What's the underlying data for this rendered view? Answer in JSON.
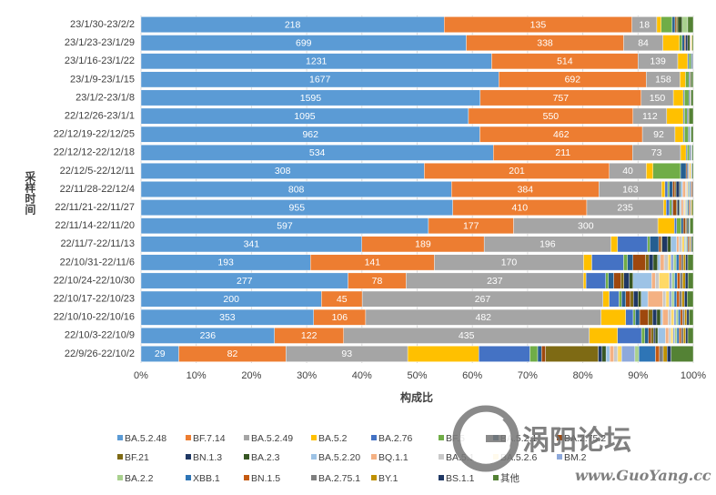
{
  "chart_data": {
    "type": "bar",
    "orientation": "horizontal",
    "stacked": true,
    "percent_stacked": true,
    "categories": [
      "23/1/30-23/2/2",
      "23/1/23-23/1/29",
      "23/1/16-23/1/22",
      "23/1/9-23/1/15",
      "23/1/2-23/1/8",
      "22/12/26-23/1/1",
      "22/12/19-22/12/25",
      "22/12/12-22/12/18",
      "22/12/5-22/12/11",
      "22/11/28-22/12/4",
      "22/11/21-22/11/27",
      "22/11/14-22/11/20",
      "22/11/7-22/11/13",
      "22/10/31-22/11/6",
      "22/10/24-22/10/30",
      "22/10/17-22/10/23",
      "22/10/10-22/10/16",
      "22/10/3-22/10/9",
      "22/9/26-22/10/2"
    ],
    "ylabel": "采样时间",
    "xlabel": "构成比",
    "xticks": [
      "0%",
      "10%",
      "20%",
      "30%",
      "40%",
      "50%",
      "60%",
      "70%",
      "80%",
      "90%",
      "100%"
    ],
    "xlim": [
      0,
      1
    ],
    "legend_position": "bottom",
    "series": [
      {
        "name": "BA.5.2.48",
        "color": "#5b9bd5",
        "shares": [
          0.549,
          0.589,
          0.635,
          0.648,
          0.613,
          0.593,
          0.613,
          0.638,
          0.513,
          0.56,
          0.565,
          0.52,
          0.397,
          0.309,
          0.388,
          0.35,
          0.322,
          0.245,
          0.068
        ],
        "labels": [
          "218",
          "699",
          "1231",
          "1677",
          "1595",
          "1095",
          "962",
          "534",
          "308",
          "808",
          "955",
          "597",
          "341",
          "193",
          "277",
          "200",
          "353",
          "236",
          "29"
        ]
      },
      {
        "name": "BF.7.14",
        "color": "#ed7d31",
        "shares": [
          0.34,
          0.285,
          0.265,
          0.267,
          0.291,
          0.298,
          0.294,
          0.252,
          0.335,
          0.266,
          0.243,
          0.154,
          0.22,
          0.226,
          0.109,
          0.079,
          0.097,
          0.127,
          0.193
        ],
        "labels": [
          "135",
          "338",
          "514",
          "692",
          "757",
          "550",
          "462",
          "211",
          "201",
          "384",
          "410",
          "177",
          "189",
          "141",
          "78",
          "45",
          "106",
          "122",
          "82"
        ]
      },
      {
        "name": "BA.5.2.49",
        "color": "#a5a5a5",
        "shares": [
          0.045,
          0.071,
          0.072,
          0.061,
          0.058,
          0.061,
          0.059,
          0.087,
          0.067,
          0.113,
          0.139,
          0.261,
          0.228,
          0.272,
          0.332,
          0.467,
          0.439,
          0.451,
          0.219
        ],
        "labels": [
          "18",
          "84",
          "139",
          "158",
          "150",
          "112",
          "92",
          "73",
          "40",
          "163",
          "235",
          "300",
          "196",
          "170",
          "237",
          "267",
          "482",
          "435",
          "93"
        ]
      },
      {
        "name": "BA.5.2",
        "color": "#ffc000",
        "shares": [
          0.008,
          0.03,
          0.018,
          0.01,
          0.018,
          0.03,
          0.015,
          0.01,
          0.012,
          0.006,
          0.005,
          0.03,
          0.012,
          0.015,
          0.005,
          0.012,
          0.046,
          0.052,
          0.128
        ]
      },
      {
        "name": "BA.2.76",
        "color": "#4472c4",
        "shares": [
          0.0,
          0.0,
          0.002,
          0.0,
          0.002,
          0.002,
          0.002,
          0.002,
          0.0,
          0.005,
          0.006,
          0.004,
          0.054,
          0.058,
          0.037,
          0.019,
          0.014,
          0.044,
          0.092
        ]
      },
      {
        "name": "BF.5",
        "color": "#70ad47",
        "shares": [
          0.02,
          0.005,
          0.004,
          0.006,
          0.008,
          0.005,
          0.007,
          0.004,
          0.05,
          0.003,
          0.004,
          0.008,
          0.004,
          0.007,
          0.005,
          0.005,
          0.004,
          0.006,
          0.014
        ]
      },
      {
        "name": "BA.5.2.1",
        "color": "#255e91",
        "shares": [
          0.005,
          0.004,
          0.002,
          0.002,
          0.002,
          0.002,
          0.002,
          0.002,
          0.01,
          0.006,
          0.002,
          0.004,
          0.016,
          0.01,
          0.01,
          0.008,
          0.008,
          0.007,
          0.007
        ]
      },
      {
        "name": "BA.2.75.2",
        "color": "#9e480e",
        "shares": [
          0.002,
          0.002,
          0.001,
          0.001,
          0.001,
          0.001,
          0.001,
          0.001,
          0.002,
          0.004,
          0.006,
          0.004,
          0.004,
          0.023,
          0.013,
          0.009,
          0.016,
          0.005,
          0.007
        ]
      },
      {
        "name": "BF.21",
        "color": "#7e6a14",
        "shares": [
          0.003,
          0.0,
          0.0,
          0.0,
          0.0,
          0.0,
          0.0,
          0.0,
          0.0,
          0.002,
          0.002,
          0.002,
          0.002,
          0.006,
          0.006,
          0.006,
          0.008,
          0.004,
          0.095
        ]
      },
      {
        "name": "BN.1.3",
        "color": "#1f3864",
        "shares": [
          0.0,
          0.004,
          0.001,
          0.0,
          0.001,
          0.0,
          0.0,
          0.0,
          0.002,
          0.006,
          0.003,
          0.002,
          0.01,
          0.008,
          0.01,
          0.009,
          0.008,
          0.003,
          0.007
        ]
      },
      {
        "name": "BA.2.3",
        "color": "#375623",
        "shares": [
          0.008,
          0.004,
          0.0,
          0.002,
          0.0,
          0.0,
          0.0,
          0.0,
          0.0,
          0.002,
          0.002,
          0.002,
          0.006,
          0.008,
          0.007,
          0.006,
          0.007,
          0.005,
          0.007
        ]
      },
      {
        "name": "BA.5.2.20",
        "color": "#9dc3e6",
        "shares": [
          0.0,
          0.0,
          0.0,
          0.0,
          0.0,
          0.0,
          0.002,
          0.002,
          0.0,
          0.004,
          0.002,
          0.002,
          0.01,
          0.005,
          0.035,
          0.013,
          0.004,
          0.014,
          0.007
        ]
      },
      {
        "name": "BQ.1.1",
        "color": "#f4b183",
        "shares": [
          0.0,
          0.0,
          0.0,
          0.0,
          0.0,
          0.0,
          0.0,
          0.0,
          0.0,
          0.005,
          0.004,
          0.0,
          0.004,
          0.007,
          0.007,
          0.029,
          0.01,
          0.006,
          0.007
        ]
      },
      {
        "name": "BA.5.1",
        "color": "#c9c9c9",
        "shares": [
          0.0,
          0.002,
          0.0,
          0.0,
          0.0,
          0.0,
          0.0,
          0.0,
          0.002,
          0.002,
          0.002,
          0.0,
          0.006,
          0.007,
          0.007,
          0.006,
          0.006,
          0.004,
          0.007
        ]
      },
      {
        "name": "BA.5.2.6",
        "color": "#ffd966",
        "shares": [
          0.0,
          0.002,
          0.0,
          0.0,
          0.0,
          0.0,
          0.0,
          0.0,
          0.003,
          0.002,
          0.002,
          0.0,
          0.004,
          0.005,
          0.019,
          0.006,
          0.005,
          0.004,
          0.007
        ]
      },
      {
        "name": "BM.2",
        "color": "#8ea9db",
        "shares": [
          0.0,
          0.0,
          0.0,
          0.0,
          0.0,
          0.0,
          0.0,
          0.0,
          0.002,
          0.002,
          0.002,
          0.0,
          0.002,
          0.005,
          0.005,
          0.005,
          0.004,
          0.003,
          0.024
        ]
      },
      {
        "name": "BA.2.2",
        "color": "#a9d18e",
        "shares": [
          0.01,
          0.0,
          0.0,
          0.0,
          0.0,
          0.0,
          0.0,
          0.0,
          0.0,
          0.002,
          0.002,
          0.0,
          0.002,
          0.005,
          0.005,
          0.005,
          0.004,
          0.004,
          0.007
        ]
      },
      {
        "name": "XBB.1",
        "color": "#2e75b6",
        "shares": [
          0.0,
          0.0,
          0.0,
          0.0,
          0.0,
          0.0,
          0.0,
          0.0,
          0.0,
          0.002,
          0.002,
          0.0,
          0.002,
          0.005,
          0.005,
          0.005,
          0.004,
          0.004,
          0.03
        ]
      },
      {
        "name": "BN.1.5",
        "color": "#c55a11",
        "shares": [
          0.0,
          0.0,
          0.0,
          0.0,
          0.0,
          0.0,
          0.0,
          0.0,
          0.0,
          0.002,
          0.002,
          0.0,
          0.002,
          0.004,
          0.005,
          0.005,
          0.004,
          0.004,
          0.007
        ]
      },
      {
        "name": "BA.2.75.1",
        "color": "#7f7f7f",
        "shares": [
          0.0,
          0.0,
          0.0,
          0.0,
          0.0,
          0.0,
          0.0,
          0.0,
          0.0,
          0.002,
          0.002,
          0.0,
          0.002,
          0.004,
          0.005,
          0.005,
          0.004,
          0.004,
          0.007
        ]
      },
      {
        "name": "BY.1",
        "color": "#bf9000",
        "shares": [
          0.0,
          0.0,
          0.0,
          0.0,
          0.0,
          0.0,
          0.0,
          0.0,
          0.0,
          0.0,
          0.002,
          0.0,
          0.002,
          0.004,
          0.005,
          0.005,
          0.004,
          0.004,
          0.007
        ]
      },
      {
        "name": "BS.1.1",
        "color": "#203864",
        "shares": [
          0.0,
          0.0,
          0.0,
          0.0,
          0.0,
          0.0,
          0.0,
          0.0,
          0.0,
          0.0,
          0.0,
          0.0,
          0.002,
          0.004,
          0.005,
          0.005,
          0.004,
          0.004,
          0.007
        ]
      },
      {
        "name": "其他",
        "color": "#548235",
        "shares": [
          0.01,
          0.002,
          0.0,
          0.003,
          0.004,
          0.008,
          0.004,
          0.002,
          0.002,
          0.0,
          0.002,
          0.006,
          0.002,
          0.01,
          0.01,
          0.012,
          0.008,
          0.01,
          0.04
        ]
      }
    ]
  },
  "watermark": {
    "title": "涡阳论坛",
    "url": "www.GuoYang.cc"
  }
}
